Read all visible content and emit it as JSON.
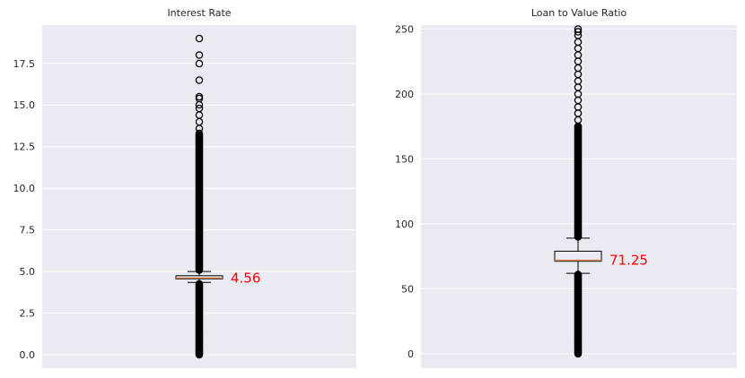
{
  "style": {
    "plot_background": "#eaeaf2",
    "grid_color": "#ffffff",
    "box_edge_color": "#000000",
    "median_color": "#dd8452",
    "flier_edge_color": "#000000",
    "annotation_color": "#ff0000"
  },
  "chart_data": [
    {
      "type": "box",
      "title": "Interest Rate",
      "xlabel": "",
      "ylabel": "",
      "ylim": [
        -0.8,
        19.8
      ],
      "yticks": [
        0.0,
        2.5,
        5.0,
        7.5,
        10.0,
        12.5,
        15.0,
        17.5
      ],
      "ytick_labels": [
        "0.0",
        "2.5",
        "5.0",
        "7.5",
        "10.0",
        "12.5",
        "15.0",
        "17.5"
      ],
      "grid": "horizontal",
      "box": {
        "q1": 4.56,
        "median": 4.56,
        "q3": 4.75,
        "whisker_low": 4.35,
        "whisker_high": 5.0
      },
      "median_annotation": "4.56",
      "outliers": {
        "dense_ranges": [
          [
            0.0,
            4.25
          ],
          [
            5.1,
            13.2
          ]
        ],
        "points": [
          0.0,
          0.3,
          0.7,
          1.1,
          13.3,
          13.6,
          14.0,
          14.4,
          14.8,
          15.0,
          15.4,
          15.5,
          16.5,
          17.5,
          18.0,
          19.0
        ]
      }
    },
    {
      "type": "box",
      "title": "Loan to Value Ratio",
      "xlabel": "",
      "ylabel": "",
      "ylim": [
        -11,
        253
      ],
      "yticks": [
        0,
        50,
        100,
        150,
        200,
        250
      ],
      "ytick_labels": [
        "0",
        "50",
        "100",
        "150",
        "200",
        "250"
      ],
      "grid": "horizontal",
      "box": {
        "q1": 71.25,
        "median": 71.25,
        "q3": 79,
        "whisker_low": 62,
        "whisker_high": 89
      },
      "median_annotation": "71.25",
      "outliers": {
        "dense_ranges": [
          [
            0,
            61
          ],
          [
            90,
            175
          ]
        ],
        "points": [
          180,
          185,
          190,
          195,
          200,
          205,
          210,
          215,
          220,
          225,
          230,
          235,
          240,
          245,
          248,
          250
        ]
      }
    }
  ]
}
